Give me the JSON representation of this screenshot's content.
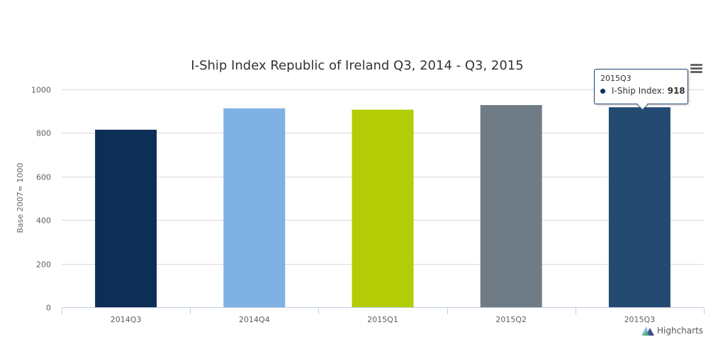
{
  "chart_data": {
    "type": "bar",
    "title": "I-Ship Index Republic of Ireland Q3, 2014 - Q3, 2015",
    "ylabel": "Base 2007= 1000",
    "xlabel": "",
    "categories": [
      "2014Q3",
      "2014Q4",
      "2015Q1",
      "2015Q2",
      "2015Q3"
    ],
    "series": [
      {
        "name": "I-Ship Index",
        "values": [
          815,
          913,
          907,
          928,
          918
        ],
        "colors": [
          "#0d2f56",
          "#7fb2e3",
          "#b2cc05",
          "#6f7b85",
          "#244a72"
        ]
      }
    ],
    "ylim": [
      0,
      1000
    ],
    "yticks": [
      0,
      200,
      400,
      600,
      800,
      1000
    ],
    "grid": true,
    "legend": "none"
  },
  "tooltip": {
    "title": "2015Q3",
    "series_name": "I-Ship Index:",
    "value": "918",
    "dot_color": "#0d2f56"
  },
  "credits": {
    "label": "Highcharts"
  },
  "menu": {
    "icon": "hamburger-menu-icon"
  }
}
